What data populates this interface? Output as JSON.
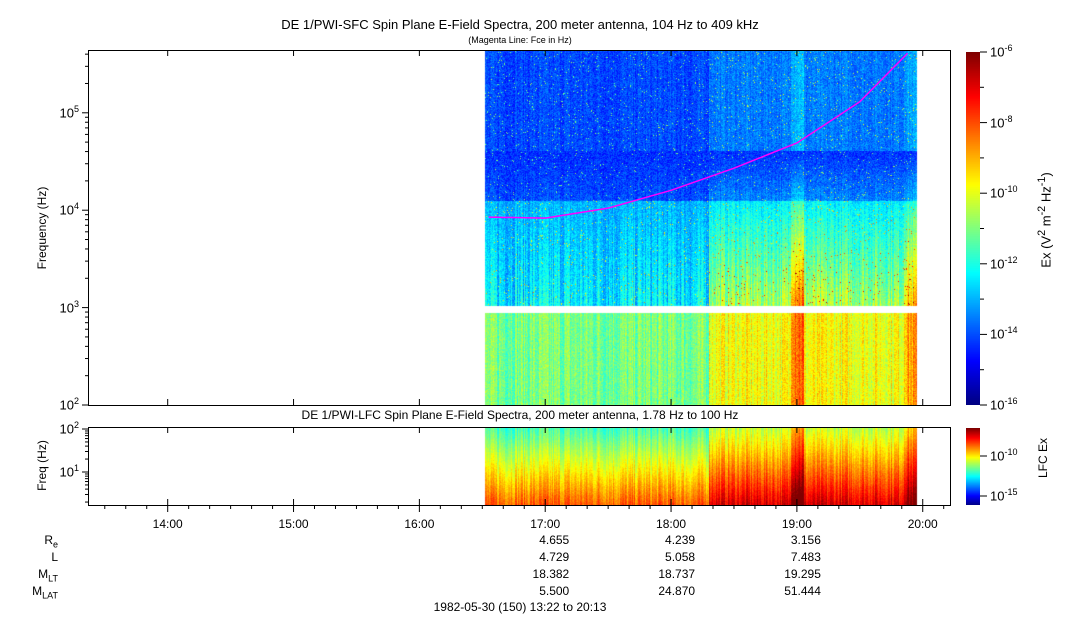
{
  "chart_data": [
    {
      "type": "heatmap",
      "title": "DE 1/PWI-SFC  Spin Plane E-Field Spectra, 200 meter antenna, 104 Hz to 409 kHz",
      "subtitle": "(Magenta Line: Fce in Hz)",
      "ylabel": "Frequency (Hz)",
      "yscale": "log",
      "ylim": [
        100,
        409000
      ],
      "yticks": [
        {
          "v": 100,
          "label": "10",
          "exp": "2"
        },
        {
          "v": 1000,
          "label": "10",
          "exp": "3"
        },
        {
          "v": 10000,
          "label": "10",
          "exp": "4"
        },
        {
          "v": 100000,
          "label": "10",
          "exp": "5"
        }
      ],
      "data_time_range_h": [
        16.52,
        19.95
      ],
      "gap_hz": [
        900,
        1050
      ],
      "colorbar": {
        "label": "Ex (V",
        "label_sup1": "2",
        "label_mid": " m",
        "label_sup2": "-2",
        "label_mid2": " Hz",
        "label_sup3": "-1",
        "label_end": ")",
        "range": [
          1e-16,
          1e-06
        ],
        "ticks": [
          {
            "label": "10",
            "exp": "-6"
          },
          {
            "label": "10",
            "exp": "-8"
          },
          {
            "label": "10",
            "exp": "-10"
          },
          {
            "label": "10",
            "exp": "-12"
          },
          {
            "label": "10",
            "exp": "-14"
          },
          {
            "label": "10",
            "exp": "-16"
          }
        ]
      },
      "fce_line": {
        "color": "#ff00ff",
        "points": [
          [
            16.55,
            8500
          ],
          [
            17.0,
            8300
          ],
          [
            17.5,
            10500
          ],
          [
            18.0,
            16000
          ],
          [
            18.5,
            27000
          ],
          [
            19.0,
            49000
          ],
          [
            19.5,
            130000
          ],
          [
            19.88,
            409000
          ]
        ]
      }
    },
    {
      "type": "heatmap",
      "title": "DE 1/PWI-LFC  Spin Plane E-Field Spectra, 200 meter antenna, 1.78 Hz to 100 Hz",
      "ylabel": "Freq (Hz)",
      "yscale": "log",
      "ylim": [
        1.78,
        100
      ],
      "yticks": [
        {
          "v": 10,
          "label": "10",
          "exp": "1"
        },
        {
          "v": 100,
          "label": "10",
          "exp": "2"
        }
      ],
      "colorbar": {
        "label": "LFC Ex",
        "ticks": [
          {
            "label": "10",
            "exp": "-10"
          },
          {
            "label": "10",
            "exp": "-15"
          }
        ]
      }
    }
  ],
  "xaxis": {
    "range_h": [
      13.3667,
      20.2167
    ],
    "ticks": [
      "14:00",
      "15:00",
      "16:00",
      "17:00",
      "18:00",
      "19:00",
      "20:00"
    ]
  },
  "ephemeris": {
    "labels": [
      {
        "main": "R",
        "sub": "e"
      },
      {
        "main": "L",
        "sub": ""
      },
      {
        "main": "M",
        "sub": "LT"
      },
      {
        "main": "M",
        "sub": "LAT"
      }
    ],
    "columns": [
      {
        "time": "17:00",
        "values": [
          "4.655",
          "4.729",
          "18.382",
          "5.500"
        ]
      },
      {
        "time": "18:00",
        "values": [
          "4.239",
          "5.058",
          "18.737",
          "24.870"
        ]
      },
      {
        "time": "19:00",
        "values": [
          "3.156",
          "7.483",
          "19.295",
          "51.444"
        ]
      }
    ]
  },
  "footer": "1982-05-30 (150) 13:22 to 20:13"
}
